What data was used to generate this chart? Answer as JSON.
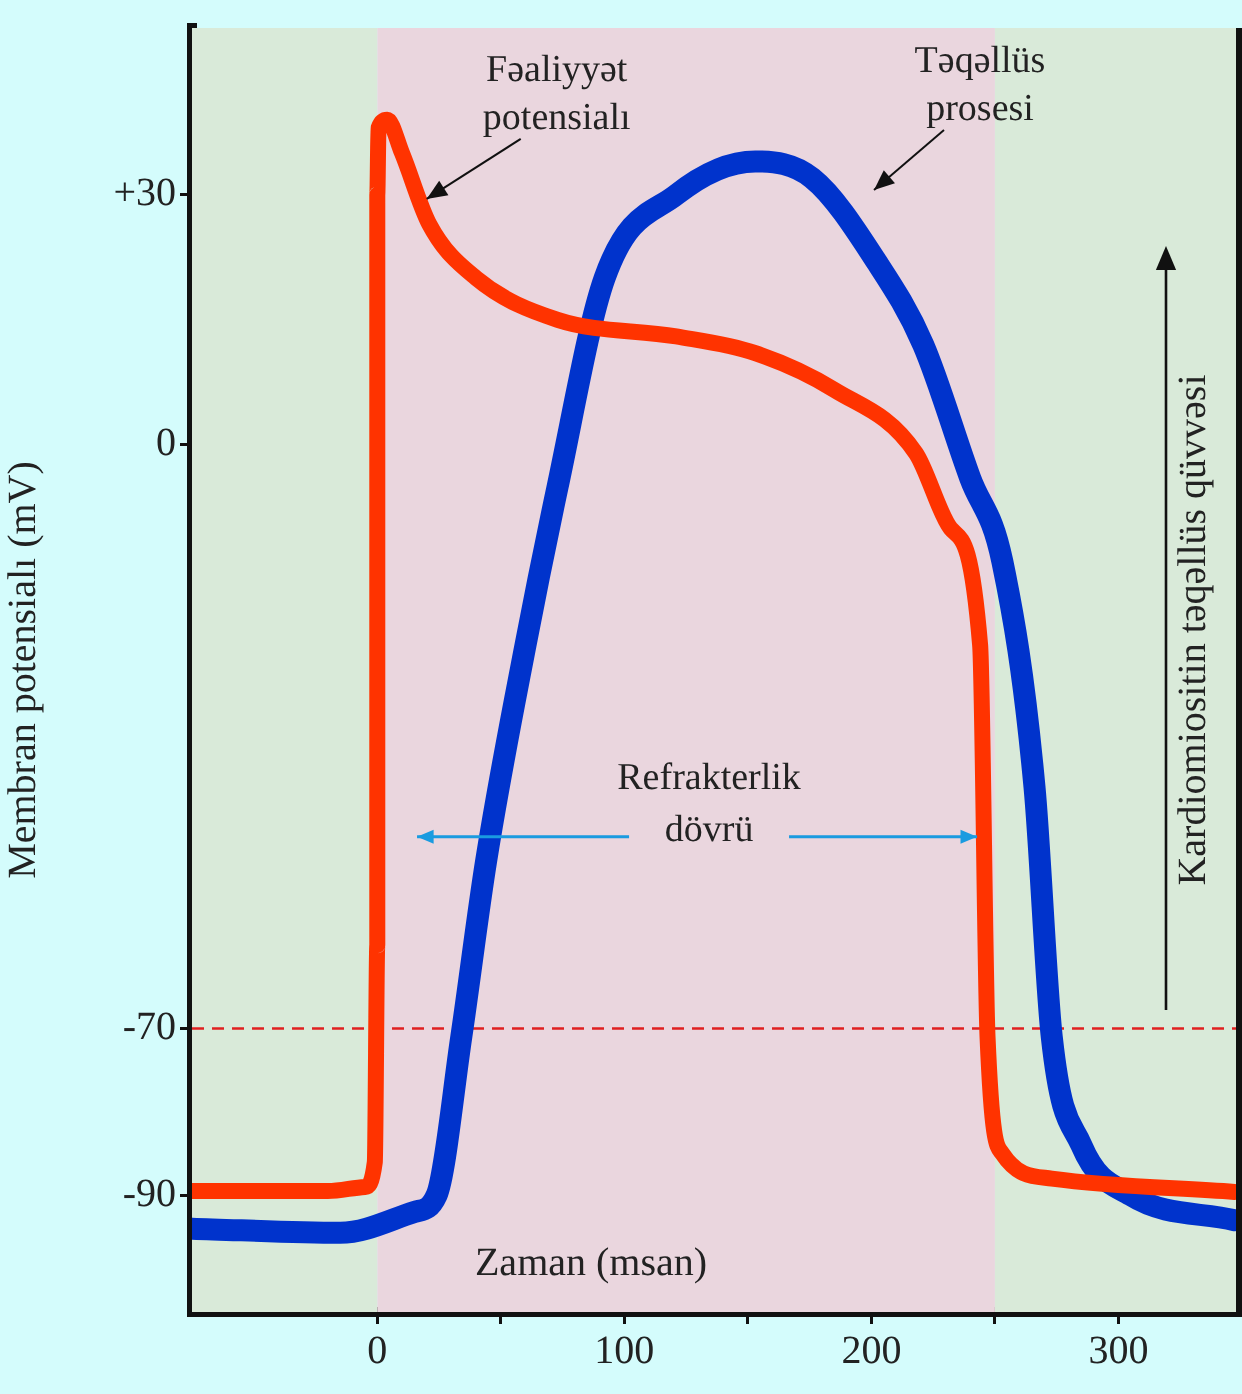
{
  "chart_data": {
    "type": "line",
    "xlabel": "Zaman (msan)",
    "ylabel": "Membran potensialı (mV)",
    "y2label": "Kardiomiositin təqəllüs qüvvəsi",
    "xlim": [
      -75,
      350
    ],
    "ylim": [
      -104,
      50
    ],
    "xticks": [
      0,
      {
        "value": 50,
        "label": null
      },
      100,
      {
        "value": 150,
        "label": null
      },
      200,
      {
        "value": 250,
        "label": null
      },
      300
    ],
    "yticks": [
      {
        "value": 30,
        "label": "+30"
      },
      0,
      -70,
      -90
    ],
    "grid": false,
    "legend": false,
    "marker": "none",
    "line_style": "solid",
    "series": [
      {
        "color": "#ff3300",
        "x": [
          -75,
          -20,
          -5,
          -1,
          0,
          0,
          0.5,
          4,
          10,
          21,
          40,
          73,
          121,
          153,
          185,
          218,
          232,
          244,
          247,
          253,
          273,
          347
        ],
        "values": [
          -89.5,
          -89.5,
          -89,
          -86,
          -60,
          30,
          38,
          39,
          35,
          26.5,
          20,
          15,
          13,
          11,
          6.6,
          -1,
          -10,
          -24,
          -71,
          -85,
          -88,
          -89.6
        ]
      },
      {
        "color": "#0033cc",
        "x": [
          -75,
          -15,
          15,
          24,
          34,
          44,
          60,
          73,
          92,
          121,
          153,
          176,
          202,
          221,
          240,
          253,
          266,
          273,
          285,
          305,
          347
        ],
        "values": [
          -94,
          -94.5,
          -92,
          -90,
          -71,
          -50,
          -24,
          -5,
          20,
          30,
          34,
          32,
          22,
          12,
          -4,
          -14,
          -41,
          -71,
          -84,
          -90,
          -93
        ]
      }
    ],
    "ref_lines": [
      {
        "axis": "y",
        "value": -70,
        "color": "#e02020",
        "line_style": "dashed"
      }
    ],
    "bands": [
      {
        "axis": "x",
        "from": -75,
        "to": 0,
        "color": "#d9ead9"
      },
      {
        "axis": "x",
        "from": 0,
        "to": 250,
        "color": "#ead6de"
      },
      {
        "axis": "x",
        "from": 250,
        "to": 350,
        "color": "#d9ead9"
      }
    ],
    "annotations": [
      {
        "text": "Fəaliyyət potensialı",
        "x": 20,
        "y": 29.5
      },
      "Təqəllüs prosesi",
      {
        "text": "Refrakterlik dövrü",
        "x": 246,
        "y": -47
      }
    ]
  }
}
